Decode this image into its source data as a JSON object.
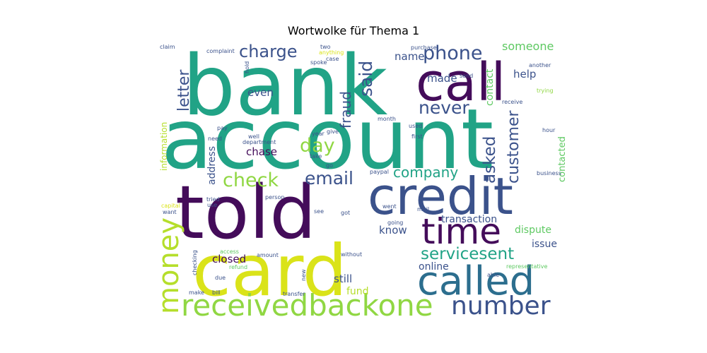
{
  "chart_data": {
    "type": "wordcloud",
    "title": "Wortwolke für Thema 1",
    "colormap": "viridis",
    "words": [
      {
        "text": "bank",
        "weight": 100,
        "color": "#21a386",
        "orientation": "horizontal"
      },
      {
        "text": "account",
        "weight": 96,
        "color": "#21a386",
        "orientation": "horizontal"
      },
      {
        "text": "card",
        "weight": 78,
        "color": "#dae319",
        "orientation": "horizontal"
      },
      {
        "text": "told",
        "weight": 80,
        "color": "#440c5a",
        "orientation": "horizontal"
      },
      {
        "text": "call",
        "weight": 52,
        "color": "#440c5a",
        "orientation": "horizontal"
      },
      {
        "text": "credit",
        "weight": 45,
        "color": "#3b528b",
        "orientation": "horizontal"
      },
      {
        "text": "called",
        "weight": 38,
        "color": "#2c6e8e",
        "orientation": "horizontal"
      },
      {
        "text": "time",
        "weight": 33,
        "color": "#440c5a",
        "orientation": "horizontal"
      },
      {
        "text": "money",
        "weight": 26,
        "color": "#b5de2b",
        "orientation": "vertical"
      },
      {
        "text": "receivedbackone",
        "weight": 28,
        "color": "#90d743",
        "orientation": "horizontal"
      },
      {
        "text": "number",
        "weight": 24,
        "color": "#3b528b",
        "orientation": "horizontal"
      },
      {
        "text": "phone",
        "weight": 17,
        "color": "#3b528b",
        "orientation": "horizontal"
      },
      {
        "text": "said",
        "weight": 16,
        "color": "#3b528b",
        "orientation": "vertical"
      },
      {
        "text": "charge",
        "weight": 15,
        "color": "#3b528b",
        "orientation": "horizontal"
      },
      {
        "text": "letter",
        "weight": 14,
        "color": "#3b528b",
        "orientation": "vertical"
      },
      {
        "text": "never",
        "weight": 15,
        "color": "#3b528b",
        "orientation": "horizontal"
      },
      {
        "text": "fraud",
        "weight": 13,
        "color": "#3b528b",
        "orientation": "vertical"
      },
      {
        "text": "day",
        "weight": 17,
        "color": "#90d743",
        "orientation": "horizontal"
      },
      {
        "text": "customer",
        "weight": 14,
        "color": "#3b528b",
        "orientation": "vertical"
      },
      {
        "text": "asked",
        "weight": 15,
        "color": "#3b528b",
        "orientation": "vertical"
      },
      {
        "text": "check",
        "weight": 17,
        "color": "#90d743",
        "orientation": "horizontal"
      },
      {
        "text": "email",
        "weight": 15,
        "color": "#3b528b",
        "orientation": "horizontal"
      },
      {
        "text": "company",
        "weight": 13,
        "color": "#21a386",
        "orientation": "horizontal"
      },
      {
        "text": "servicesent",
        "weight": 14,
        "color": "#21a386",
        "orientation": "horizontal"
      },
      {
        "text": "someone",
        "weight": 10,
        "color": "#5ec962",
        "orientation": "horizontal"
      },
      {
        "text": "name",
        "weight": 9,
        "color": "#3b528b",
        "orientation": "horizontal"
      },
      {
        "text": "made",
        "weight": 9,
        "color": "#3b528b",
        "orientation": "horizontal"
      },
      {
        "text": "help",
        "weight": 9,
        "color": "#3b528b",
        "orientation": "horizontal"
      },
      {
        "text": "contact",
        "weight": 8,
        "color": "#5ec962",
        "orientation": "vertical"
      },
      {
        "text": "even",
        "weight": 9,
        "color": "#3b528b",
        "orientation": "horizontal"
      },
      {
        "text": "chase",
        "weight": 9,
        "color": "#440c5a",
        "orientation": "horizontal"
      },
      {
        "text": "address",
        "weight": 9,
        "color": "#3b528b",
        "orientation": "vertical"
      },
      {
        "text": "information",
        "weight": 8,
        "color": "#b5de2b",
        "orientation": "vertical"
      },
      {
        "text": "contacted",
        "weight": 8,
        "color": "#5ec962",
        "orientation": "vertical"
      },
      {
        "text": "transaction",
        "weight": 9,
        "color": "#3b528b",
        "orientation": "horizontal"
      },
      {
        "text": "dispute",
        "weight": 9,
        "color": "#5ec962",
        "orientation": "horizontal"
      },
      {
        "text": "know",
        "weight": 9,
        "color": "#3b528b",
        "orientation": "horizontal"
      },
      {
        "text": "issue",
        "weight": 9,
        "color": "#3b528b",
        "orientation": "horizontal"
      },
      {
        "text": "closed",
        "weight": 9,
        "color": "#440c5a",
        "orientation": "horizontal"
      },
      {
        "text": "online",
        "weight": 9,
        "color": "#3b528b",
        "orientation": "horizontal"
      },
      {
        "text": "still",
        "weight": 9,
        "color": "#3b528b",
        "orientation": "horizontal"
      },
      {
        "text": "fund",
        "weight": 8,
        "color": "#b5de2b",
        "orientation": "horizontal"
      },
      {
        "text": "claim",
        "weight": 4,
        "color": "#3b528b",
        "orientation": "horizontal"
      },
      {
        "text": "complaint",
        "weight": 4,
        "color": "#3b528b",
        "orientation": "horizontal"
      },
      {
        "text": "two",
        "weight": 4,
        "color": "#3b528b",
        "orientation": "horizontal"
      },
      {
        "text": "anything",
        "weight": 4,
        "color": "#dae319",
        "orientation": "horizontal"
      },
      {
        "text": "purchase",
        "weight": 4,
        "color": "#3b528b",
        "orientation": "horizontal"
      },
      {
        "text": "case",
        "weight": 4,
        "color": "#3b528b",
        "orientation": "horizontal"
      },
      {
        "text": "spoke",
        "weight": 4,
        "color": "#3b528b",
        "orientation": "horizontal"
      },
      {
        "text": "hold",
        "weight": 4,
        "color": "#3b528b",
        "orientation": "vertical"
      },
      {
        "text": "send",
        "weight": 4,
        "color": "#3b528b",
        "orientation": "horizontal"
      },
      {
        "text": "another",
        "weight": 4,
        "color": "#3b528b",
        "orientation": "horizontal"
      },
      {
        "text": "trying",
        "weight": 4,
        "color": "#90d743",
        "orientation": "horizontal"
      },
      {
        "text": "receive",
        "weight": 4,
        "color": "#3b528b",
        "orientation": "horizontal"
      },
      {
        "text": "month",
        "weight": 4,
        "color": "#3b528b",
        "orientation": "horizontal"
      },
      {
        "text": "used",
        "weight": 4,
        "color": "#3b528b",
        "orientation": "horizontal"
      },
      {
        "text": "first",
        "weight": 4,
        "color": "#3b528b",
        "orientation": "horizontal"
      },
      {
        "text": "hour",
        "weight": 4,
        "color": "#3b528b",
        "orientation": "horizontal"
      },
      {
        "text": "pay",
        "weight": 4,
        "color": "#3b528b",
        "orientation": "horizontal"
      },
      {
        "text": "year",
        "weight": 4,
        "color": "#3b528b",
        "orientation": "horizontal"
      },
      {
        "text": "give",
        "weight": 4,
        "color": "#3b528b",
        "orientation": "horizontal"
      },
      {
        "text": "need",
        "weight": 4,
        "color": "#3b528b",
        "orientation": "horizontal"
      },
      {
        "text": "well",
        "weight": 4,
        "color": "#3b528b",
        "orientation": "horizontal"
      },
      {
        "text": "department",
        "weight": 4,
        "color": "#3b528b",
        "orientation": "horizontal"
      },
      {
        "text": "take",
        "weight": 4,
        "color": "#3b528b",
        "orientation": "horizontal"
      },
      {
        "text": "go",
        "weight": 4,
        "color": "#3b528b",
        "orientation": "horizontal"
      },
      {
        "text": "paypal",
        "weight": 4,
        "color": "#3b528b",
        "orientation": "horizontal"
      },
      {
        "text": "business",
        "weight": 4,
        "color": "#3b528b",
        "orientation": "horizontal"
      },
      {
        "text": "person",
        "weight": 4,
        "color": "#3b528b",
        "orientation": "horizontal"
      },
      {
        "text": "tried",
        "weight": 4,
        "color": "#3b528b",
        "orientation": "horizontal"
      },
      {
        "text": "use",
        "weight": 4,
        "color": "#3b528b",
        "orientation": "horizontal"
      },
      {
        "text": "capital",
        "weight": 4,
        "color": "#dae319",
        "orientation": "horizontal"
      },
      {
        "text": "want",
        "weight": 4,
        "color": "#3b528b",
        "orientation": "horizontal"
      },
      {
        "text": "see",
        "weight": 4,
        "color": "#3b528b",
        "orientation": "horizontal"
      },
      {
        "text": "got",
        "weight": 4,
        "color": "#3b528b",
        "orientation": "horizontal"
      },
      {
        "text": "went",
        "weight": 4,
        "color": "#3b528b",
        "orientation": "horizontal"
      },
      {
        "text": "mail",
        "weight": 4,
        "color": "#3b528b",
        "orientation": "horizontal"
      },
      {
        "text": "u",
        "weight": 4,
        "color": "#3b528b",
        "orientation": "horizontal"
      },
      {
        "text": "going",
        "weight": 4,
        "color": "#3b528b",
        "orientation": "horizontal"
      },
      {
        "text": "access",
        "weight": 4,
        "color": "#5ec962",
        "orientation": "horizontal"
      },
      {
        "text": "refund",
        "weight": 4,
        "color": "#5ec962",
        "orientation": "horizontal"
      },
      {
        "text": "amount",
        "weight": 4,
        "color": "#3b528b",
        "orientation": "horizontal"
      },
      {
        "text": "without",
        "weight": 4,
        "color": "#3b528b",
        "orientation": "horizontal"
      },
      {
        "text": "checking",
        "weight": 4,
        "color": "#3b528b",
        "orientation": "vertical"
      },
      {
        "text": "due",
        "weight": 4,
        "color": "#3b528b",
        "orientation": "horizontal"
      },
      {
        "text": "new",
        "weight": 4,
        "color": "#3b528b",
        "orientation": "vertical"
      },
      {
        "text": "able",
        "weight": 4,
        "color": "#3b528b",
        "orientation": "horizontal"
      },
      {
        "text": "representative",
        "weight": 4,
        "color": "#5ec962",
        "orientation": "horizontal"
      },
      {
        "text": "make",
        "weight": 4,
        "color": "#3b528b",
        "orientation": "horizontal"
      },
      {
        "text": "bill",
        "weight": 4,
        "color": "#3b528b",
        "orientation": "horizontal"
      },
      {
        "text": "transfer",
        "weight": 4,
        "color": "#3b528b",
        "orientation": "horizontal"
      }
    ]
  }
}
